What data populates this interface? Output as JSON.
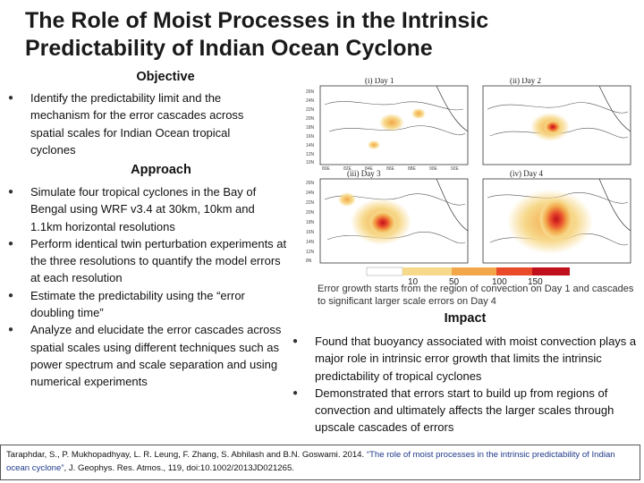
{
  "title_line1": "The Role of Moist Processes in the Intrinsic",
  "title_line2": "Predictability of Indian Ocean Cyclone",
  "objective": {
    "heading": "Objective",
    "bullets": [
      "Identify the predictability limit and the mechanism for the error cascades across spatial scales for Indian Ocean tropical cyclones"
    ]
  },
  "approach": {
    "heading": "Approach",
    "bullets": [
      "Simulate four tropical cyclones in the Bay of Bengal using WRF v3.4 at 30km, 10km and 1.1km horizontal resolutions",
      "Perform identical twin perturbation experiments at the three resolutions to quantify the model errors at each resolution",
      "Estimate the predictability using the “error doubling time”",
      "Analyze and elucidate the error cascades across spatial scales using different techniques such as power spectrum and scale separation and using numerical experiments"
    ]
  },
  "figure": {
    "panels": [
      "(i) Day 1",
      "(ii) Day 2",
      "(iii) Day 3",
      "(iv) Day 4"
    ],
    "lat_ticks": [
      "26N",
      "24N",
      "22N",
      "20N",
      "18N",
      "16N",
      "14N",
      "12N",
      "10N",
      "8N"
    ],
    "lon_ticks": [
      "80E",
      "82E",
      "84E",
      "86E",
      "88E",
      "90E",
      "92E"
    ],
    "colorbar": {
      "labels": [
        "10",
        "50",
        "100",
        "150"
      ],
      "colors": [
        "#ffffff",
        "#f7d98c",
        "#f2a84a",
        "#e84a2a",
        "#c0101c"
      ]
    },
    "caption": "Error growth starts from the region of convection on Day 1 and cascades to significant larger scale errors on Day 4"
  },
  "impact": {
    "heading": "Impact",
    "bullets": [
      "Found that buoyancy associated with moist convection plays a major role in intrinsic error growth that limits the intrinsic predictability of tropical cyclones",
      "Demonstrated that errors start to build up from regions of convection and ultimately affects the larger scales through upscale cascades of errors"
    ]
  },
  "citation": {
    "authors": "Taraphdar, S., P. Mukhopadhyay, L. R. Leung, F. Zhang, S. Abhilash and B.N. Goswami. 2014. ",
    "title": "“The role of moist processes in the intrinsic predictability of Indian ocean cyclone”",
    "journal": ", J. Geophys. Res. Atmos., 119, doi:10.1002/2013JD021265."
  }
}
